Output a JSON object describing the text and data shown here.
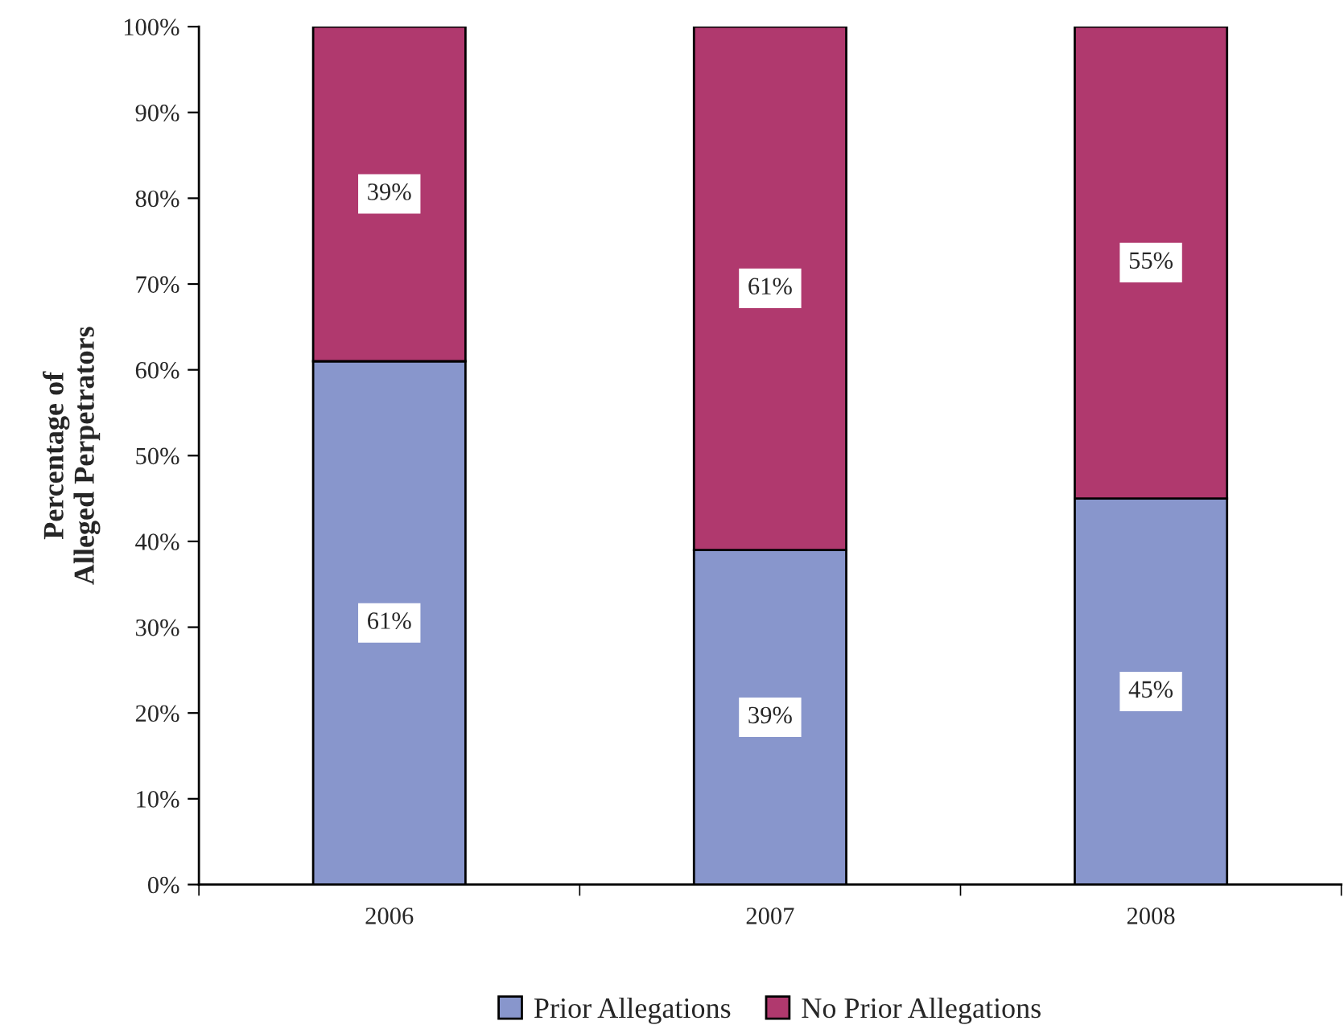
{
  "chart_data": {
    "type": "bar",
    "stacked": true,
    "ylabel": "Percentage of\nAlleged Perpetrators",
    "categories": [
      "2006",
      "2007",
      "2008"
    ],
    "series": [
      {
        "name": "Prior Allegations",
        "color": "#8896cc",
        "values": [
          61,
          39,
          45
        ],
        "value_labels": [
          "61%",
          "39%",
          "45%"
        ]
      },
      {
        "name": "No Prior Allegations",
        "color": "#b0396e",
        "values": [
          39,
          61,
          55
        ],
        "value_labels": [
          "39%",
          "61%",
          "55%"
        ]
      }
    ],
    "ylim": [
      0,
      100
    ],
    "yticks": [
      {
        "value": 0,
        "label": "0%"
      },
      {
        "value": 10,
        "label": "10%"
      },
      {
        "value": 20,
        "label": "20%"
      },
      {
        "value": 30,
        "label": "30%"
      },
      {
        "value": 40,
        "label": "40%"
      },
      {
        "value": 50,
        "label": "50%"
      },
      {
        "value": 60,
        "label": "60%"
      },
      {
        "value": 70,
        "label": "70%"
      },
      {
        "value": 80,
        "label": "80%"
      },
      {
        "value": 90,
        "label": "90%"
      },
      {
        "value": 100,
        "label": "100%"
      }
    ],
    "grid": false,
    "legend": "bottom"
  }
}
